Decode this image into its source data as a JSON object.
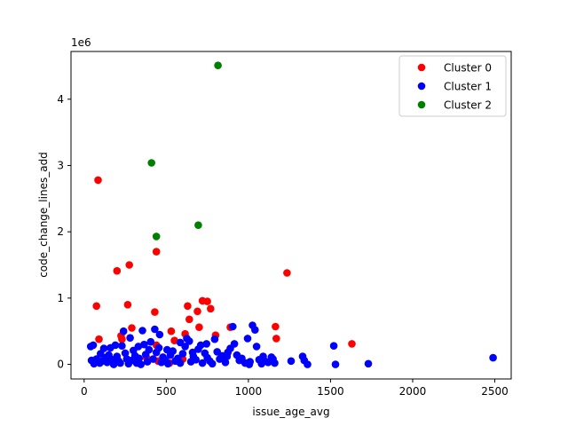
{
  "chart_data": {
    "type": "scatter",
    "xlabel": "issue_age_avg",
    "ylabel": "code_change_lines_add",
    "y_offset_label": "1e6",
    "xlim": [
      -80,
      2600
    ],
    "ylim": [
      -0.22,
      4.72
    ],
    "x_ticks": [
      0,
      500,
      1000,
      1500,
      2000,
      2500
    ],
    "y_ticks": [
      0,
      1,
      2,
      3,
      4
    ],
    "x_tick_labels": [
      "0",
      "500",
      "1000",
      "1500",
      "2000",
      "2500"
    ],
    "y_tick_labels": [
      "0",
      "1",
      "2",
      "3",
      "4"
    ],
    "grid": false,
    "legend_position": "top-right",
    "series": [
      {
        "name": "Cluster 0",
        "color": "#ff0000",
        "points": [
          [
            85,
            2.78
          ],
          [
            200,
            1.41
          ],
          [
            275,
            1.5
          ],
          [
            440,
            1.7
          ],
          [
            1235,
            1.38
          ],
          [
            75,
            0.88
          ],
          [
            90,
            0.38
          ],
          [
            225,
            0.43
          ],
          [
            230,
            0.38
          ],
          [
            265,
            0.9
          ],
          [
            290,
            0.55
          ],
          [
            430,
            0.79
          ],
          [
            440,
            0.29
          ],
          [
            530,
            0.5
          ],
          [
            550,
            0.36
          ],
          [
            615,
            0.46
          ],
          [
            630,
            0.88
          ],
          [
            640,
            0.68
          ],
          [
            690,
            0.8
          ],
          [
            700,
            0.56
          ],
          [
            720,
            0.96
          ],
          [
            750,
            0.95
          ],
          [
            770,
            0.84
          ],
          [
            800,
            0.44
          ],
          [
            890,
            0.56
          ],
          [
            1165,
            0.57
          ],
          [
            1170,
            0.39
          ],
          [
            1630,
            0.31
          ],
          [
            450,
            0.05
          ],
          [
            380,
            0.1
          ],
          [
            520,
            0.02
          ],
          [
            600,
            0.08
          ]
        ]
      },
      {
        "name": "Cluster 1",
        "color": "#0000ff",
        "points": [
          [
            40,
            0.27
          ],
          [
            55,
            0.29
          ],
          [
            45,
            0.06
          ],
          [
            60,
            0.01
          ],
          [
            75,
            0.08
          ],
          [
            95,
            0.02
          ],
          [
            110,
            0.05
          ],
          [
            120,
            0.24
          ],
          [
            130,
            0.1
          ],
          [
            140,
            0.03
          ],
          [
            150,
            0.14
          ],
          [
            160,
            0.25
          ],
          [
            170,
            0.07
          ],
          [
            180,
            0.0
          ],
          [
            190,
            0.29
          ],
          [
            200,
            0.12
          ],
          [
            210,
            0.05
          ],
          [
            220,
            0.02
          ],
          [
            240,
            0.5
          ],
          [
            250,
            0.17
          ],
          [
            260,
            0.08
          ],
          [
            270,
            0.01
          ],
          [
            280,
            0.4
          ],
          [
            290,
            0.06
          ],
          [
            300,
            0.21
          ],
          [
            310,
            0.13
          ],
          [
            320,
            0.02
          ],
          [
            335,
            0.09
          ],
          [
            345,
            0.0
          ],
          [
            355,
            0.51
          ],
          [
            365,
            0.3
          ],
          [
            375,
            0.15
          ],
          [
            385,
            0.04
          ],
          [
            395,
            0.22
          ],
          [
            405,
            0.34
          ],
          [
            420,
            0.08
          ],
          [
            430,
            0.53
          ],
          [
            440,
            0.18
          ],
          [
            455,
            0.25
          ],
          [
            470,
            0.03
          ],
          [
            480,
            0.11
          ],
          [
            495,
            0.06
          ],
          [
            510,
            0.01
          ],
          [
            525,
            0.14
          ],
          [
            540,
            0.2
          ],
          [
            555,
            0.05
          ],
          [
            570,
            0.09
          ],
          [
            585,
            0.02
          ],
          [
            600,
            0.16
          ],
          [
            615,
            0.27
          ],
          [
            625,
            0.39
          ],
          [
            640,
            0.35
          ],
          [
            650,
            0.04
          ],
          [
            665,
            0.12
          ],
          [
            680,
            0.07
          ],
          [
            695,
            0.23
          ],
          [
            710,
            0.29
          ],
          [
            720,
            0.02
          ],
          [
            735,
            0.17
          ],
          [
            750,
            0.1
          ],
          [
            765,
            0.05
          ],
          [
            780,
            0.01
          ],
          [
            795,
            0.38
          ],
          [
            810,
            0.19
          ],
          [
            825,
            0.08
          ],
          [
            840,
            0.13
          ],
          [
            860,
            0.03
          ],
          [
            875,
            0.18
          ],
          [
            890,
            0.24
          ],
          [
            905,
            0.57
          ],
          [
            915,
            0.31
          ],
          [
            930,
            0.14
          ],
          [
            945,
            0.06
          ],
          [
            960,
            0.09
          ],
          [
            980,
            0.02
          ],
          [
            995,
            0.39
          ],
          [
            1010,
            0.04
          ],
          [
            1025,
            0.59
          ],
          [
            1040,
            0.52
          ],
          [
            1050,
            0.27
          ],
          [
            1065,
            0.07
          ],
          [
            1080,
            0.01
          ],
          [
            1100,
            0.05
          ],
          [
            1120,
            0.03
          ],
          [
            1140,
            0.11
          ],
          [
            1160,
            0.02
          ],
          [
            1260,
            0.05
          ],
          [
            1330,
            0.12
          ],
          [
            1360,
            0.0
          ],
          [
            1520,
            0.28
          ],
          [
            1530,
            0.0
          ],
          [
            1730,
            0.01
          ],
          [
            2490,
            0.1
          ],
          [
            100,
            0.16
          ],
          [
            330,
            0.27
          ],
          [
            460,
            0.45
          ],
          [
            585,
            0.33
          ],
          [
            745,
            0.31
          ],
          [
            1005,
            0.0
          ],
          [
            1150,
            0.08
          ],
          [
            1340,
            0.06
          ],
          [
            230,
            0.28
          ],
          [
            505,
            0.22
          ],
          [
            660,
            0.18
          ],
          [
            870,
            0.12
          ],
          [
            1090,
            0.12
          ]
        ]
      },
      {
        "name": "Cluster 2",
        "color": "#008000",
        "points": [
          [
            815,
            4.51
          ],
          [
            410,
            3.04
          ],
          [
            440,
            1.93
          ],
          [
            695,
            2.1
          ]
        ]
      }
    ]
  }
}
